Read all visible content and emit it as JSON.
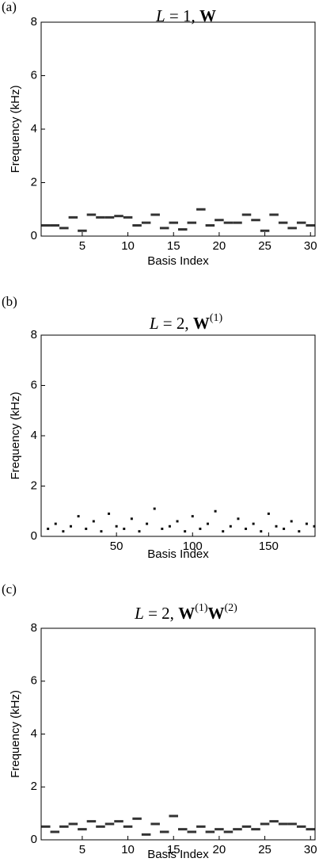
{
  "chart_data": [
    {
      "type": "heatmap",
      "panel_label": "(a)",
      "title": [
        {
          "text": "L",
          "style": "italic"
        },
        {
          "text": " = 1, "
        },
        {
          "text": "W",
          "style": "bold"
        }
      ],
      "xlabel": "Basis Index",
      "ylabel": "Frequency (kHz)",
      "x": [
        1,
        2,
        3,
        4,
        5,
        6,
        7,
        8,
        9,
        10,
        11,
        12,
        13,
        14,
        15,
        16,
        17,
        18,
        19,
        20,
        21,
        22,
        23,
        24,
        25,
        26,
        27,
        28,
        29,
        30
      ],
      "values": [
        0.4,
        0.4,
        0.3,
        0.7,
        0.2,
        0.8,
        0.7,
        0.7,
        0.75,
        0.7,
        0.4,
        0.5,
        0.8,
        0.3,
        0.5,
        0.25,
        0.5,
        1.0,
        0.4,
        0.6,
        0.5,
        0.5,
        0.8,
        0.6,
        0.2,
        0.8,
        0.5,
        0.3,
        0.5,
        0.4
      ],
      "color": "#333333",
      "xlim": [
        0.5,
        30.5
      ],
      "ylim": [
        0,
        8
      ],
      "xticks": [
        5,
        10,
        15,
        20,
        25,
        30
      ],
      "yticks": [
        0,
        2,
        4,
        6,
        8
      ]
    },
    {
      "type": "heatmap",
      "panel_label": "(b)",
      "title": [
        {
          "text": "L",
          "style": "italic"
        },
        {
          "text": " = 2, "
        },
        {
          "text": "W",
          "style": "bold"
        },
        {
          "text": "(1)",
          "style": "sup"
        }
      ],
      "xlabel": "Basis Index",
      "ylabel": "Frequency (kHz)",
      "x": [
        5,
        10,
        15,
        20,
        25,
        30,
        35,
        40,
        45,
        50,
        55,
        60,
        65,
        70,
        75,
        80,
        85,
        90,
        95,
        100,
        105,
        110,
        115,
        120,
        125,
        130,
        135,
        140,
        145,
        150,
        155,
        160,
        165,
        170,
        175,
        180
      ],
      "values": [
        0.3,
        0.5,
        0.2,
        0.4,
        0.8,
        0.3,
        0.6,
        0.2,
        0.9,
        0.4,
        0.3,
        0.7,
        0.2,
        0.5,
        1.1,
        0.3,
        0.4,
        0.6,
        0.2,
        0.8,
        0.3,
        0.5,
        1.0,
        0.2,
        0.4,
        0.7,
        0.3,
        0.5,
        0.2,
        0.9,
        0.4,
        0.3,
        0.6,
        0.2,
        0.5,
        0.4
      ],
      "color": "#111111",
      "xlim": [
        0.5,
        180.5
      ],
      "ylim": [
        0,
        8
      ],
      "xticks": [
        50,
        100,
        150
      ],
      "yticks": [
        0,
        2,
        4,
        6,
        8
      ]
    },
    {
      "type": "heatmap",
      "panel_label": "(c)",
      "title": [
        {
          "text": "L",
          "style": "italic"
        },
        {
          "text": " = 2, "
        },
        {
          "text": "W",
          "style": "bold"
        },
        {
          "text": "(1)",
          "style": "sup"
        },
        {
          "text": "W",
          "style": "bold"
        },
        {
          "text": "(2)",
          "style": "sup"
        }
      ],
      "xlabel": "Basis Index",
      "ylabel": "Frequency (kHz)",
      "x": [
        1,
        2,
        3,
        4,
        5,
        6,
        7,
        8,
        9,
        10,
        11,
        12,
        13,
        14,
        15,
        16,
        17,
        18,
        19,
        20,
        21,
        22,
        23,
        24,
        25,
        26,
        27,
        28,
        29,
        30
      ],
      "values": [
        0.5,
        0.3,
        0.5,
        0.6,
        0.4,
        0.7,
        0.5,
        0.6,
        0.7,
        0.5,
        0.8,
        0.2,
        0.6,
        0.3,
        0.9,
        0.4,
        0.3,
        0.5,
        0.3,
        0.4,
        0.3,
        0.4,
        0.5,
        0.4,
        0.6,
        0.7,
        0.6,
        0.6,
        0.5,
        0.4
      ],
      "color": "#333333",
      "xlim": [
        0.5,
        30.5
      ],
      "ylim": [
        0,
        8
      ],
      "xticks": [
        5,
        10,
        15,
        20,
        25,
        30
      ],
      "yticks": [
        0,
        2,
        4,
        6,
        8
      ]
    }
  ]
}
